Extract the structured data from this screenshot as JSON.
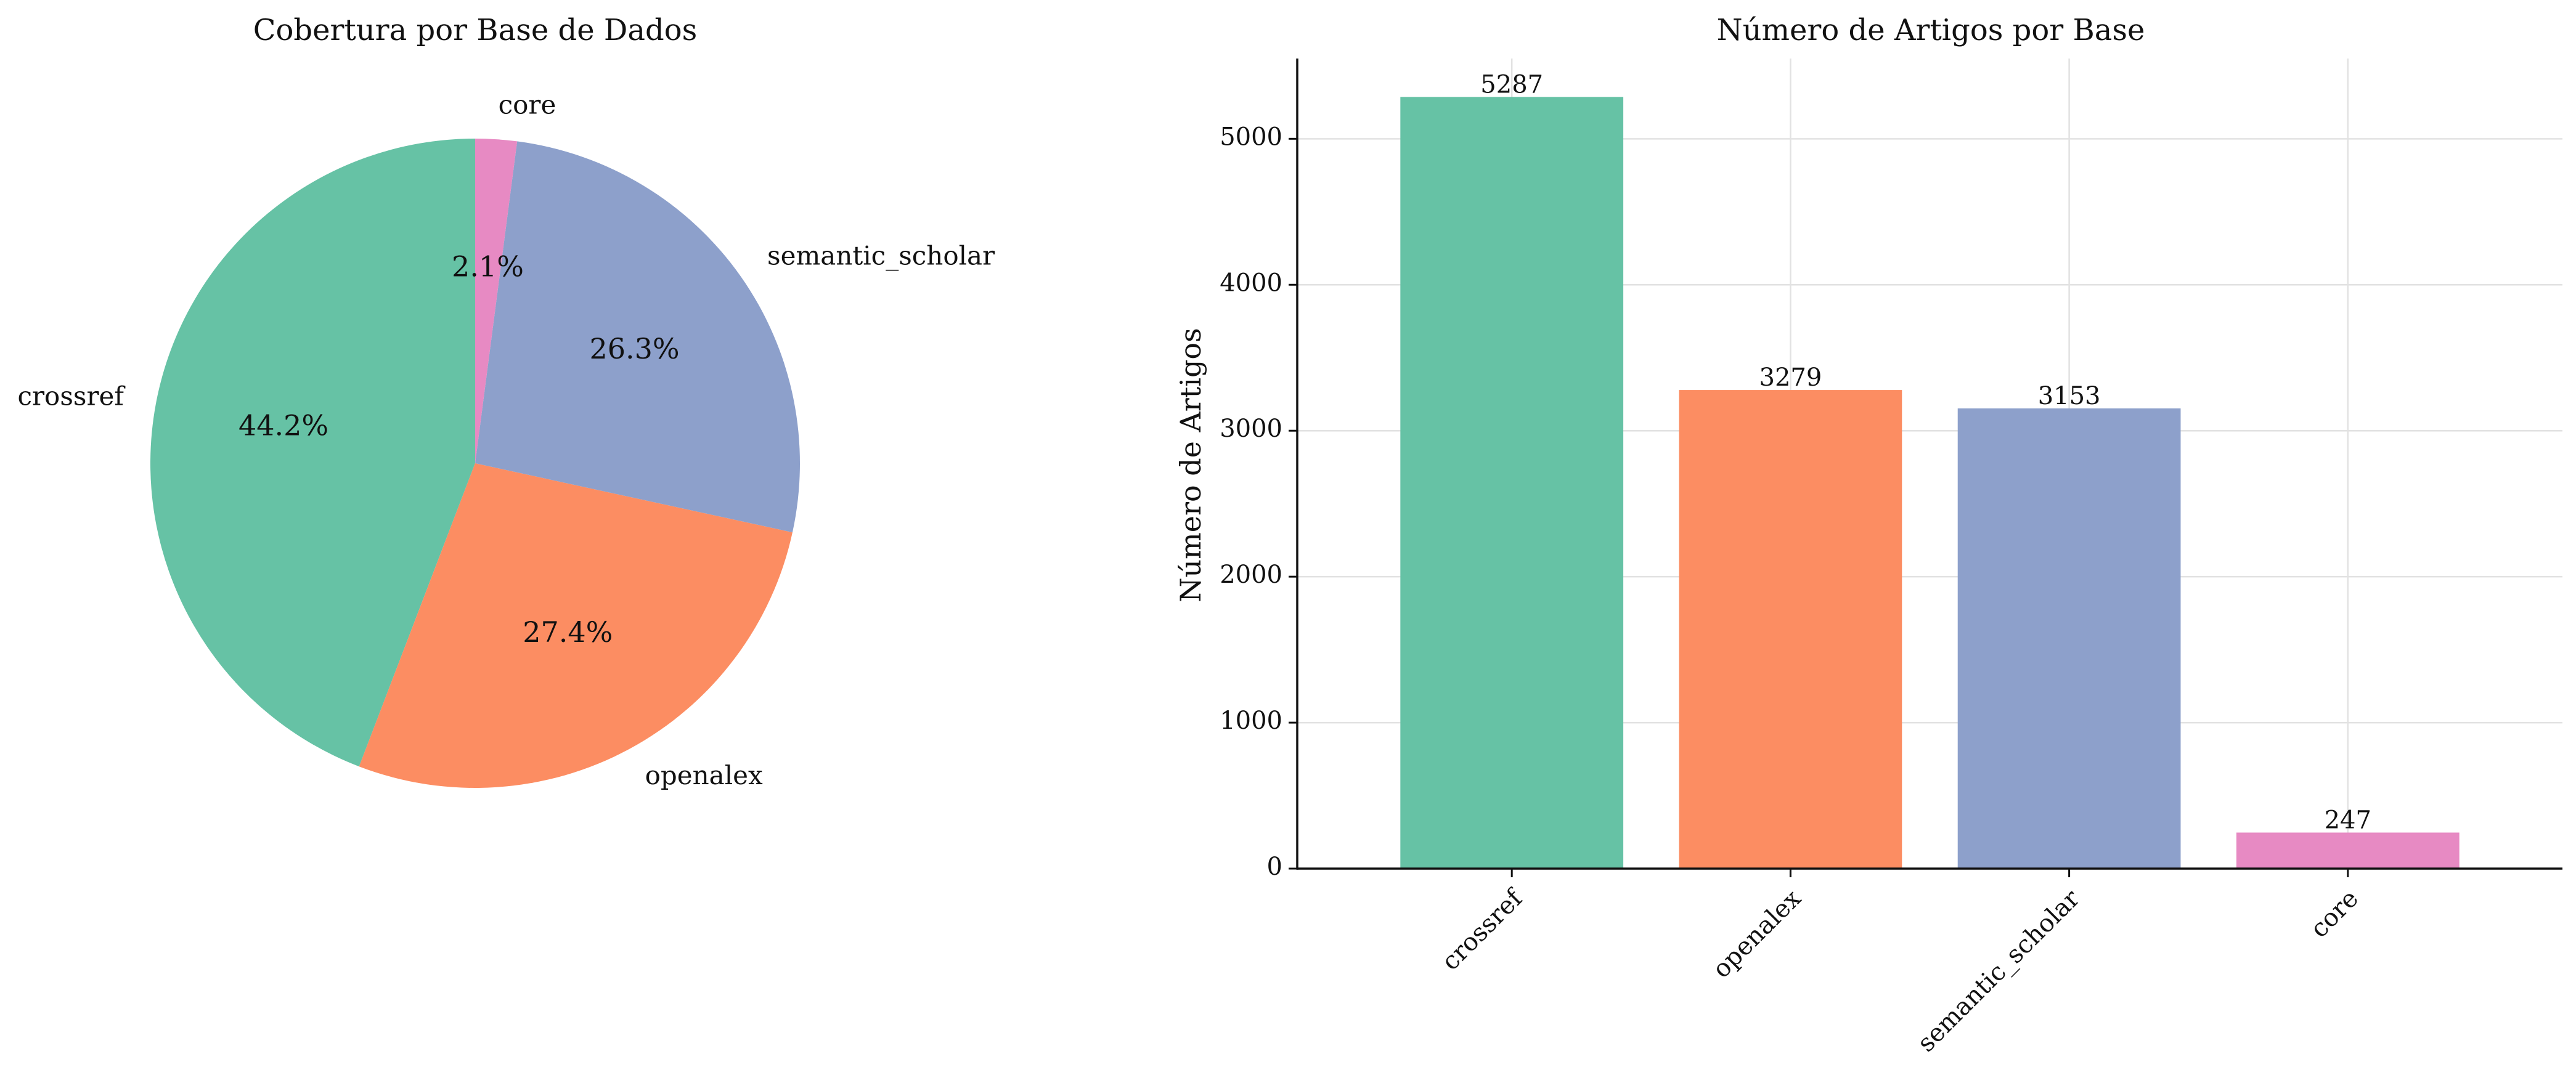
{
  "chart_data": [
    {
      "type": "pie",
      "title": "Cobertura por Base de Dados",
      "categories": [
        "crossref",
        "openalex",
        "semantic_scholar",
        "core"
      ],
      "values": [
        5287,
        3279,
        3153,
        247
      ],
      "percent_labels": [
        "44.2%",
        "27.4%",
        "26.3%",
        "2.1%"
      ],
      "colors": [
        "#66c2a5",
        "#fc8d62",
        "#8da0cb",
        "#e78ac3"
      ],
      "start_angle_deg": 90,
      "direction": "counterclockwise"
    },
    {
      "type": "bar",
      "title": "Número de Artigos por Base",
      "categories": [
        "crossref",
        "openalex",
        "semantic_scholar",
        "core"
      ],
      "values": [
        5287,
        3279,
        3153,
        247
      ],
      "data_labels": [
        "5287",
        "3279",
        "3153",
        "247"
      ],
      "colors": [
        "#66c2a5",
        "#fc8d62",
        "#8da0cb",
        "#e78ac3"
      ],
      "xlabel": "",
      "ylabel": "Número de Artigos",
      "ylim": [
        0,
        5550
      ],
      "yticks": [
        0,
        1000,
        2000,
        3000,
        4000,
        5000
      ],
      "ytick_labels": [
        "0",
        "1000",
        "2000",
        "3000",
        "4000",
        "5000"
      ],
      "grid": true,
      "xtick_rotation_deg": 45
    }
  ]
}
